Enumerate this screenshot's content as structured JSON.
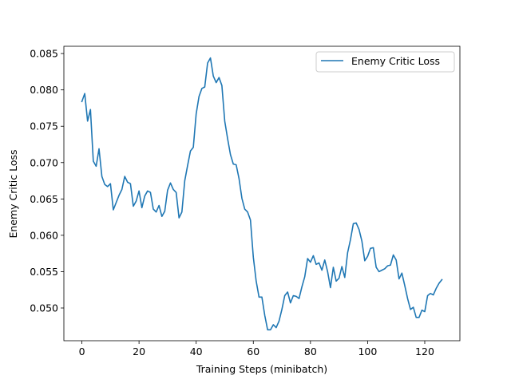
{
  "chart_data": {
    "type": "line",
    "title": "",
    "xlabel": "Training Steps (minibatch)",
    "ylabel": "Enemy Critic Loss",
    "xlim": [
      -6.3,
      132.3
    ],
    "ylim": [
      0.0455,
      0.086
    ],
    "xticks": [
      0,
      20,
      40,
      60,
      80,
      100,
      120
    ],
    "xtick_labels": [
      "0",
      "20",
      "40",
      "60",
      "80",
      "100",
      "120"
    ],
    "yticks": [
      0.05,
      0.055,
      0.06,
      0.065,
      0.07,
      0.075,
      0.08,
      0.085
    ],
    "ytick_labels": [
      "0.050",
      "0.055",
      "0.060",
      "0.065",
      "0.070",
      "0.075",
      "0.080",
      "0.085"
    ],
    "grid": false,
    "legend": {
      "position": "upper-right",
      "entries": [
        "Enemy Critic Loss"
      ]
    },
    "series": [
      {
        "name": "Enemy Critic Loss",
        "color": "#1f77b4",
        "x": [
          0,
          1,
          2,
          3,
          4,
          5,
          6,
          7,
          8,
          9,
          10,
          11,
          12,
          13,
          14,
          15,
          16,
          17,
          18,
          19,
          20,
          21,
          22,
          23,
          24,
          25,
          26,
          27,
          28,
          29,
          30,
          31,
          32,
          33,
          34,
          35,
          36,
          37,
          38,
          39,
          40,
          41,
          42,
          43,
          44,
          45,
          46,
          47,
          48,
          49,
          50,
          51,
          52,
          53,
          54,
          55,
          56,
          57,
          58,
          59,
          60,
          61,
          62,
          63,
          64,
          65,
          66,
          67,
          68,
          69,
          70,
          71,
          72,
          73,
          74,
          75,
          76,
          77,
          78,
          79,
          80,
          81,
          82,
          83,
          84,
          85,
          86,
          87,
          88,
          89,
          90,
          91,
          92,
          93,
          94,
          95,
          96,
          97,
          98,
          99,
          100,
          101,
          102,
          103,
          104,
          105,
          106,
          107,
          108,
          109,
          110,
          111,
          112,
          113,
          114,
          115,
          116,
          117,
          118,
          119,
          120,
          121,
          122,
          123,
          124,
          125,
          126
        ],
        "values": [
          0.0784,
          0.0795,
          0.0757,
          0.0773,
          0.0702,
          0.0695,
          0.0719,
          0.0681,
          0.067,
          0.0667,
          0.0671,
          0.0635,
          0.0645,
          0.0655,
          0.0663,
          0.0681,
          0.0673,
          0.0671,
          0.064,
          0.0647,
          0.0661,
          0.0638,
          0.0654,
          0.0661,
          0.0659,
          0.0636,
          0.0632,
          0.0641,
          0.0626,
          0.0633,
          0.0662,
          0.0672,
          0.0663,
          0.0659,
          0.0624,
          0.0632,
          0.0675,
          0.0696,
          0.0716,
          0.0721,
          0.0767,
          0.0791,
          0.0802,
          0.0804,
          0.0837,
          0.0844,
          0.0819,
          0.081,
          0.0817,
          0.0806,
          0.0757,
          0.0733,
          0.0711,
          0.0698,
          0.0697,
          0.0678,
          0.0651,
          0.0636,
          0.0632,
          0.0621,
          0.057,
          0.0537,
          0.0515,
          0.0515,
          0.049,
          0.047,
          0.047,
          0.0477,
          0.0473,
          0.0482,
          0.0498,
          0.0517,
          0.0522,
          0.0507,
          0.0517,
          0.0516,
          0.0513,
          0.0529,
          0.0543,
          0.0568,
          0.0563,
          0.0572,
          0.056,
          0.0562,
          0.0552,
          0.0566,
          0.055,
          0.0528,
          0.0556,
          0.0537,
          0.0541,
          0.0557,
          0.0542,
          0.0576,
          0.0594,
          0.0616,
          0.0617,
          0.0608,
          0.0592,
          0.0565,
          0.0571,
          0.0582,
          0.0583,
          0.0556,
          0.055,
          0.0552,
          0.0554,
          0.0558,
          0.0559,
          0.0573,
          0.0566,
          0.054,
          0.0548,
          0.0531,
          0.0513,
          0.0498,
          0.0501,
          0.0487,
          0.0487,
          0.0497,
          0.0495,
          0.0517,
          0.052,
          0.0518,
          0.0527,
          0.0534,
          0.0539
        ]
      }
    ]
  }
}
